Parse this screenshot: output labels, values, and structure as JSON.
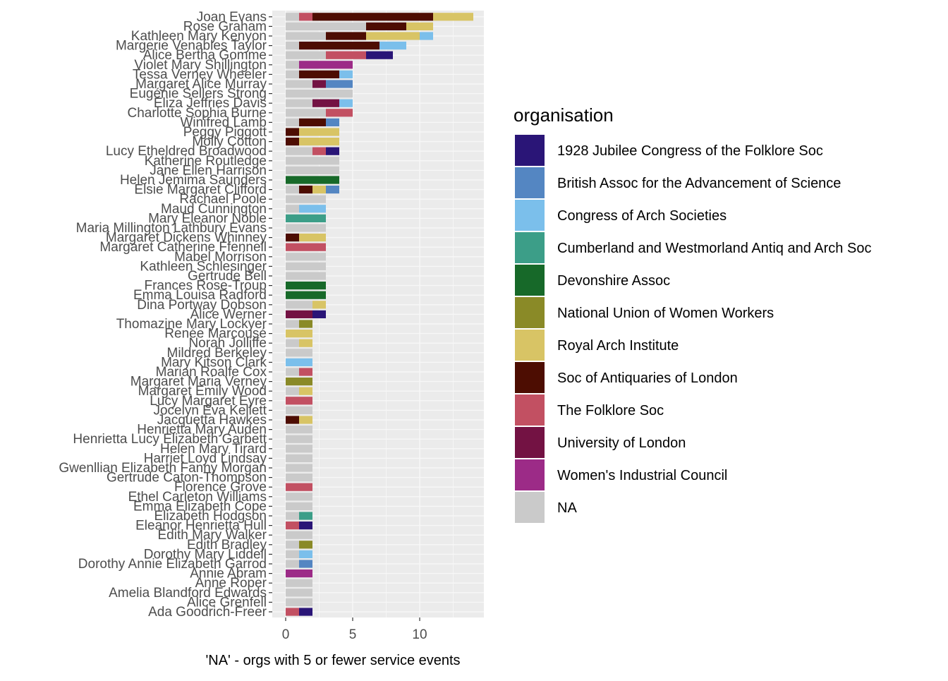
{
  "chart_data": {
    "type": "bar",
    "orientation": "horizontal",
    "stacked": true,
    "xlabel": "'NA' - orgs with 5 or fewer service events",
    "ylabel": "",
    "xlim": [
      0,
      14.8
    ],
    "x_ticks": [
      0,
      5,
      10
    ],
    "grid": true,
    "legend_position": "right",
    "legend_title": "organisation",
    "series": [
      {
        "key": "NA",
        "name": "NA",
        "color": "#CACACA"
      },
      {
        "key": "UoL",
        "name": "University of London",
        "color": "#731243"
      },
      {
        "key": "FS",
        "name": "The Folklore Soc",
        "color": "#C25062"
      },
      {
        "key": "SAL",
        "name": "Soc of Antiquaries of London",
        "color": "#4D0D02"
      },
      {
        "key": "RAI",
        "name": "Royal Arch Institute",
        "color": "#D8C465"
      },
      {
        "key": "NUWW",
        "name": "National Union of Women Workers",
        "color": "#8A8A27"
      },
      {
        "key": "DA",
        "name": "Devonshire Assoc",
        "color": "#176929"
      },
      {
        "key": "CW",
        "name": "Cumberland and Westmorland Antiq and Arch Soc",
        "color": "#3C9E88"
      },
      {
        "key": "CAS",
        "name": "Congress of Arch Societies",
        "color": "#7BBFEB"
      },
      {
        "key": "BA",
        "name": "British Assoc for the Advancement of Science",
        "color": "#5486C2"
      },
      {
        "key": "WIC",
        "name": "Women's Industrial Council",
        "color": "#9C2B87"
      },
      {
        "key": "JC",
        "name": "1928 Jubilee Congress of the Folklore Soc",
        "color": "#2A1577"
      }
    ],
    "legend_order": [
      "JC",
      "BA",
      "CAS",
      "CW",
      "DA",
      "NUWW",
      "RAI",
      "SAL",
      "FS",
      "UoL",
      "WIC",
      "NA"
    ],
    "categories": [
      "Joan Evans",
      "Rose Graham",
      "Kathleen Mary Kenyon",
      "Margerie Venables Taylor",
      "Alice Bertha Gomme",
      "Violet Mary Shillington",
      "Tessa Verney Wheeler",
      "Margaret Alice Murray",
      "Eugénie Sellers Strong",
      "Eliza Jeffries Davis",
      "Charlotte Sophia Burne",
      "Winifred Lamb",
      "Peggy Piggott",
      "Molly Cotton",
      "Lucy Etheldred Broadwood",
      "Katherine Routledge",
      "Jane Ellen Harrison",
      "Helen Jemima Saunders",
      "Elsie Margaret Clifford",
      "Rachael Poole",
      "Maud Cunnington",
      "Mary Eleanor Noble",
      "Maria Millington Lathbury Evans",
      "Margaret Dickens Whinney",
      "Margaret Catherine Ffennell",
      "Mabel Morrison",
      "Kathleen Schlesinger",
      "Gertrude Bell",
      "Frances Rose-Troup",
      "Emma Louisa Radford",
      "Dina Portway Dobson",
      "Alice Werner",
      "Thomazine Mary Lockyer",
      "Renée Marcousé",
      "Norah Jolliffe",
      "Mildred Berkeley",
      "Mary Kitson Clark",
      "Marian Roalfe Cox",
      "Margaret Maria Verney",
      "Margaret Emily Wood",
      "Lucy Margaret Eyre",
      "Jocelyn Eva Kellett",
      "Jacquetta Hawkes",
      "Henrietta Mary Auden",
      "Henrietta Lucy Elizabeth Garbett",
      "Helen Mary Tirard",
      "Harriet Loyd Lindsay",
      "Gwenllian Elizabeth Fanny Morgan",
      "Gertrude Caton-Thompson",
      "Florence Grove",
      "Ethel Carleton Williams",
      "Emma Elizabeth Cope",
      "Elizabeth Hodgson",
      "Eleanor Henrietta Hull",
      "Edith Mary Walker",
      "Edith Bradley",
      "Dorothy Mary Liddell",
      "Dorothy Annie Elizabeth Garrod",
      "Annie Abram",
      "Anne Roper",
      "Amelia Blandford Edwards",
      "Alice Grenfell",
      "Ada Goodrich-Freer"
    ],
    "segments": [
      [
        [
          "NA",
          1
        ],
        [
          "FS",
          1
        ],
        [
          "SAL",
          9
        ],
        [
          "RAI",
          3
        ]
      ],
      [
        [
          "NA",
          6
        ],
        [
          "SAL",
          3
        ],
        [
          "RAI",
          2
        ]
      ],
      [
        [
          "NA",
          3
        ],
        [
          "SAL",
          3
        ],
        [
          "RAI",
          4
        ],
        [
          "CAS",
          1
        ]
      ],
      [
        [
          "NA",
          1
        ],
        [
          "SAL",
          6
        ],
        [
          "CAS",
          2
        ]
      ],
      [
        [
          "NA",
          3
        ],
        [
          "FS",
          3
        ],
        [
          "JC",
          2
        ]
      ],
      [
        [
          "NA",
          1
        ],
        [
          "WIC",
          4
        ]
      ],
      [
        [
          "NA",
          1
        ],
        [
          "SAL",
          3
        ],
        [
          "CAS",
          1
        ]
      ],
      [
        [
          "NA",
          2
        ],
        [
          "UoL",
          1
        ],
        [
          "BA",
          2
        ]
      ],
      [
        [
          "NA",
          5
        ]
      ],
      [
        [
          "NA",
          2
        ],
        [
          "UoL",
          2
        ],
        [
          "CAS",
          1
        ]
      ],
      [
        [
          "NA",
          3
        ],
        [
          "FS",
          2
        ]
      ],
      [
        [
          "NA",
          1
        ],
        [
          "SAL",
          2
        ],
        [
          "BA",
          1
        ]
      ],
      [
        [
          "SAL",
          1
        ],
        [
          "RAI",
          3
        ]
      ],
      [
        [
          "SAL",
          1
        ],
        [
          "RAI",
          3
        ]
      ],
      [
        [
          "NA",
          2
        ],
        [
          "FS",
          1
        ],
        [
          "JC",
          1
        ]
      ],
      [
        [
          "NA",
          4
        ]
      ],
      [
        [
          "NA",
          4
        ]
      ],
      [
        [
          "DA",
          4
        ]
      ],
      [
        [
          "NA",
          1
        ],
        [
          "SAL",
          1
        ],
        [
          "RAI",
          1
        ],
        [
          "BA",
          1
        ]
      ],
      [
        [
          "NA",
          3
        ]
      ],
      [
        [
          "NA",
          1
        ],
        [
          "CAS",
          2
        ]
      ],
      [
        [
          "CW",
          3
        ]
      ],
      [
        [
          "NA",
          3
        ]
      ],
      [
        [
          "SAL",
          1
        ],
        [
          "RAI",
          2
        ]
      ],
      [
        [
          "FS",
          3
        ]
      ],
      [
        [
          "NA",
          3
        ]
      ],
      [
        [
          "NA",
          3
        ]
      ],
      [
        [
          "NA",
          3
        ]
      ],
      [
        [
          "DA",
          3
        ]
      ],
      [
        [
          "DA",
          3
        ]
      ],
      [
        [
          "NA",
          2
        ],
        [
          "RAI",
          1
        ]
      ],
      [
        [
          "UoL",
          2
        ],
        [
          "JC",
          1
        ]
      ],
      [
        [
          "NA",
          1
        ],
        [
          "NUWW",
          1
        ]
      ],
      [
        [
          "RAI",
          2
        ]
      ],
      [
        [
          "NA",
          1
        ],
        [
          "RAI",
          1
        ]
      ],
      [
        [
          "NA",
          2
        ]
      ],
      [
        [
          "CAS",
          2
        ]
      ],
      [
        [
          "NA",
          1
        ],
        [
          "FS",
          1
        ]
      ],
      [
        [
          "NUWW",
          2
        ]
      ],
      [
        [
          "NA",
          1
        ],
        [
          "RAI",
          1
        ]
      ],
      [
        [
          "FS",
          2
        ]
      ],
      [
        [
          "NA",
          2
        ]
      ],
      [
        [
          "SAL",
          1
        ],
        [
          "RAI",
          1
        ]
      ],
      [
        [
          "NA",
          2
        ]
      ],
      [
        [
          "NA",
          2
        ]
      ],
      [
        [
          "NA",
          2
        ]
      ],
      [
        [
          "NA",
          2
        ]
      ],
      [
        [
          "NA",
          2
        ]
      ],
      [
        [
          "NA",
          2
        ]
      ],
      [
        [
          "FS",
          2
        ]
      ],
      [
        [
          "NA",
          2
        ]
      ],
      [
        [
          "NA",
          2
        ]
      ],
      [
        [
          "NA",
          1
        ],
        [
          "CW",
          1
        ]
      ],
      [
        [
          "FS",
          1
        ],
        [
          "JC",
          1
        ]
      ],
      [
        [
          "NA",
          2
        ]
      ],
      [
        [
          "NA",
          1
        ],
        [
          "NUWW",
          1
        ]
      ],
      [
        [
          "NA",
          1
        ],
        [
          "CAS",
          1
        ]
      ],
      [
        [
          "NA",
          1
        ],
        [
          "BA",
          1
        ]
      ],
      [
        [
          "WIC",
          2
        ]
      ],
      [
        [
          "NA",
          2
        ]
      ],
      [
        [
          "NA",
          2
        ]
      ],
      [
        [
          "NA",
          2
        ]
      ],
      [
        [
          "FS",
          1
        ],
        [
          "JC",
          1
        ]
      ]
    ]
  }
}
